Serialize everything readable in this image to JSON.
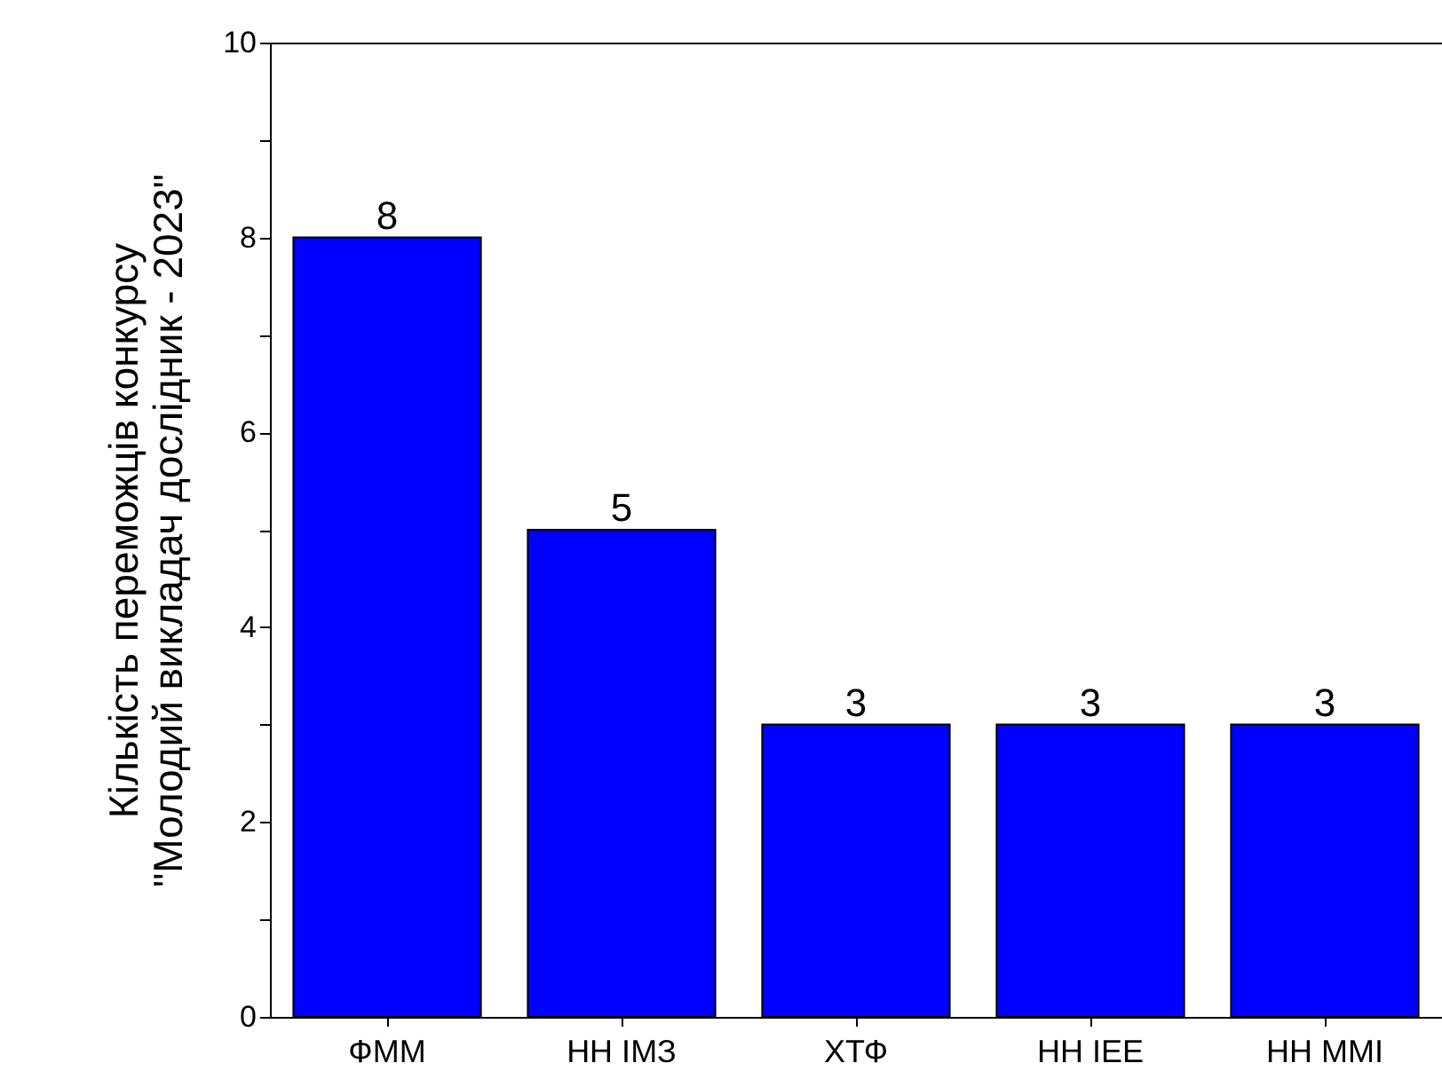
{
  "chart_data": {
    "type": "bar",
    "ylabel": [
      "Кількість переможців конкурсу",
      "\"Молодий викладач дослідник - 2023\""
    ],
    "categories": [
      "ФММ",
      "НН ІМЗ",
      "ХТФ",
      "НН ІЕЕ",
      "НН ММІ"
    ],
    "values": [
      8,
      5,
      3,
      3,
      3
    ],
    "color": "#0000ff",
    "ylim": [
      0,
      10
    ],
    "yticks": [
      0,
      {
        "value": 1,
        "label": null
      },
      2,
      {
        "value": 3,
        "label": null
      },
      4,
      {
        "value": 5,
        "label": null
      },
      6,
      {
        "value": 7,
        "label": null
      },
      8,
      {
        "value": 9,
        "label": null
      },
      10
    ],
    "data_labels": true,
    "grid": false
  }
}
